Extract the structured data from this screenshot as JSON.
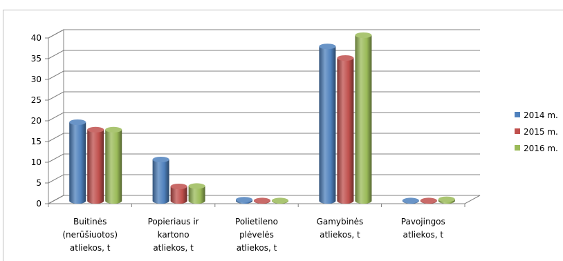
{
  "chart_data": {
    "type": "bar",
    "categories": [
      [
        "Buitinės",
        "(nerūšiuotos)",
        "atliekos, t"
      ],
      [
        "Popieriaus ir",
        "kartono",
        "atliekos, t"
      ],
      [
        "Polietileno",
        "plėvelės",
        "atliekos, t"
      ],
      [
        "Gamybinės",
        "atliekos, t"
      ],
      [
        "Pavojingos",
        "atliekos, t"
      ]
    ],
    "series": [
      {
        "name": "2014 m.",
        "color": "#4f81bd",
        "values": [
          19,
          10,
          0.3,
          37.3,
          0.1
        ]
      },
      {
        "name": "2015 m.",
        "color": "#c0504d",
        "values": [
          17.2,
          3.5,
          0.1,
          34.5,
          0.1
        ]
      },
      {
        "name": "2016 m.",
        "color": "#9bbb59",
        "values": [
          17.2,
          3.6,
          0.1,
          40,
          0.4
        ]
      }
    ],
    "ylim": [
      0,
      40
    ],
    "yticks": [
      "0",
      "5",
      "10",
      "15",
      "20",
      "25",
      "30",
      "35",
      "40"
    ],
    "legend_position": "right",
    "grid": true,
    "style": "3d-cylinder"
  }
}
